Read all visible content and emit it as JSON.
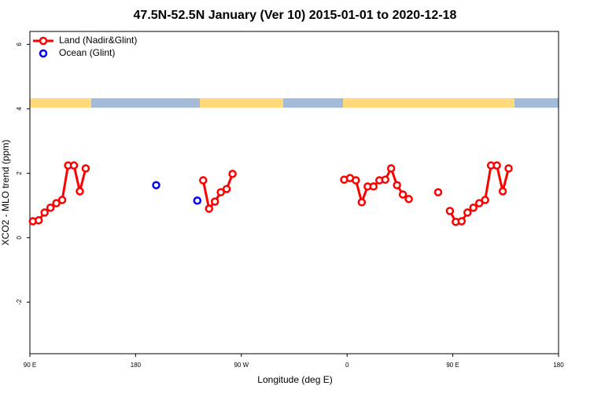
{
  "chart_data": {
    "type": "line",
    "title": "47.5N-52.5N January (Ver 10)   2015-01-01 to 2020-12-18",
    "x_label": "Longitude (deg E)",
    "y_label": "XCO2 - MLO trend (ppm)",
    "xlim": [
      90,
      540
    ],
    "ylim": [
      -3.6,
      6.4
    ],
    "xticks": [
      {
        "value": 90,
        "label": "90 E"
      },
      180,
      {
        "value": 270,
        "label": "90 W"
      },
      {
        "value": 360,
        "label": "0"
      },
      {
        "value": 450,
        "label": "90 E"
      },
      {
        "value": 540,
        "label": "180"
      }
    ],
    "yticks": [
      -2,
      0,
      2,
      4,
      6
    ],
    "legend": "top-left",
    "series": [
      {
        "name": "Land (Nadir&Glint)",
        "color": "#ff0000",
        "line": true,
        "x": [
          92.5,
          97.5,
          102.5,
          107.5,
          112.5,
          117.5,
          122.5,
          127.5,
          132.5,
          137.5,
          null,
          237.5,
          242.5,
          247.5,
          252.5,
          257.5,
          262.5,
          null,
          357.5,
          362.5,
          367.5,
          372.5,
          377.5,
          382.5,
          387.5,
          392.5,
          397.5,
          402.5,
          407.5,
          412.5,
          null,
          437.5,
          null,
          447.5,
          452.5,
          457.5,
          462.5,
          467.5,
          472.5,
          477.5,
          482.5,
          487.5,
          492.5,
          497.5
        ],
        "values": [
          0.51,
          0.54,
          0.78,
          0.93,
          1.07,
          1.17,
          2.24,
          2.24,
          1.44,
          2.15,
          null,
          1.78,
          0.9,
          1.12,
          1.41,
          1.51,
          1.98,
          null,
          1.8,
          1.85,
          1.78,
          1.1,
          1.59,
          1.59,
          1.78,
          1.8,
          2.15,
          1.63,
          1.34,
          1.2,
          null,
          1.41,
          null,
          0.83,
          0.49,
          0.51,
          0.78,
          0.93,
          1.07,
          1.17,
          2.24,
          2.24,
          1.44,
          2.15
        ]
      },
      {
        "name": "Ocean (Glint)",
        "color": "#0000ff",
        "line": false,
        "x": [
          197.5,
          232.5
        ],
        "values": [
          1.63,
          1.15
        ]
      }
    ]
  }
}
